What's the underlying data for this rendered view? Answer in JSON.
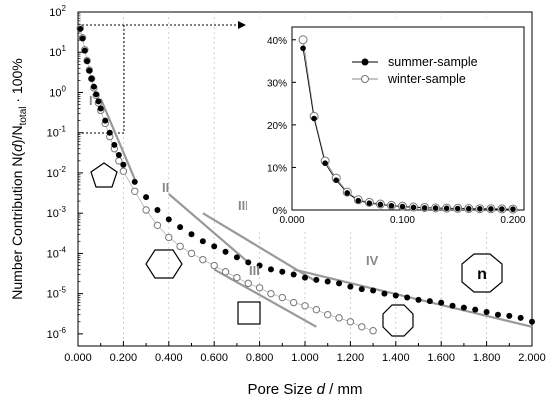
{
  "chart_data": {
    "type": "scatter",
    "xlabel": {
      "pre": "Pore Size ",
      "var": "d",
      "post": " / mm"
    },
    "ylabel": {
      "pre": "Number Contribution N(",
      "var": "d",
      "mid": ")/N",
      "sub": "total",
      "post": " · 100%"
    },
    "x_ticks": [
      "0.000",
      "0.200",
      "0.400",
      "0.600",
      "0.800",
      "1.000",
      "1.200",
      "1.400",
      "1.600",
      "1.800",
      "2.000"
    ],
    "xlim": [
      0,
      2.0
    ],
    "y_scale": "log",
    "ylim": [
      5e-07,
      100
    ],
    "y_tick_exponents": [
      -6,
      -5,
      -4,
      -3,
      -2,
      -1,
      0,
      1,
      2
    ],
    "y_tick_base": "10",
    "grid": "vertical dashed",
    "series": [
      {
        "name": "summer-sample",
        "marker": "filled-circle",
        "color": "#000000",
        "x": [
          0.01,
          0.02,
          0.03,
          0.04,
          0.05,
          0.06,
          0.07,
          0.08,
          0.09,
          0.1,
          0.12,
          0.14,
          0.16,
          0.18,
          0.2,
          0.25,
          0.3,
          0.35,
          0.4,
          0.45,
          0.5,
          0.55,
          0.6,
          0.65,
          0.7,
          0.75,
          0.8,
          0.85,
          0.9,
          0.95,
          1.0,
          1.05,
          1.1,
          1.15,
          1.2,
          1.25,
          1.3,
          1.35,
          1.4,
          1.45,
          1.5,
          1.55,
          1.6,
          1.65,
          1.7,
          1.75,
          1.8,
          1.85,
          1.9,
          1.95,
          2.0
        ],
        "y": [
          38,
          22,
          11,
          6,
          3.5,
          2.2,
          1.4,
          0.9,
          0.6,
          0.4,
          0.2,
          0.1,
          0.05,
          0.028,
          0.016,
          0.006,
          0.0025,
          0.0012,
          0.0007,
          0.00045,
          0.0003,
          0.0002,
          0.00015,
          0.00011,
          8e-05,
          6e-05,
          5e-05,
          4e-05,
          3.5e-05,
          3e-05,
          2.5e-05,
          2.2e-05,
          2e-05,
          1.8e-05,
          1.5e-05,
          1.3e-05,
          1.2e-05,
          1e-05,
          9e-06,
          8e-06,
          7e-06,
          6.5e-06,
          6e-06,
          5e-06,
          4.5e-06,
          4e-06,
          3.5e-06,
          3e-06,
          2.8e-06,
          2.5e-06,
          2e-06
        ]
      },
      {
        "name": "winter-sample",
        "marker": "open-circle",
        "color": "#777777",
        "x": [
          0.01,
          0.02,
          0.03,
          0.04,
          0.05,
          0.06,
          0.07,
          0.08,
          0.09,
          0.1,
          0.12,
          0.14,
          0.16,
          0.18,
          0.2,
          0.25,
          0.3,
          0.35,
          0.4,
          0.45,
          0.5,
          0.55,
          0.6,
          0.65,
          0.7,
          0.75,
          0.8,
          0.85,
          0.9,
          0.95,
          1.0,
          1.05,
          1.1,
          1.15,
          1.2,
          1.25,
          1.3
        ],
        "y": [
          40,
          23,
          11.5,
          6.2,
          3.6,
          2.2,
          1.3,
          0.85,
          0.55,
          0.36,
          0.17,
          0.08,
          0.04,
          0.02,
          0.011,
          0.0035,
          0.0012,
          0.0005,
          0.00025,
          0.00015,
          0.0001,
          7e-05,
          5e-05,
          3.5e-05,
          2.5e-05,
          1.8e-05,
          1.4e-05,
          1e-05,
          8e-06,
          6e-06,
          5e-06,
          4e-06,
          3e-06,
          2.5e-06,
          2e-06,
          1.5e-06,
          1.2e-06
        ]
      }
    ],
    "fit_lines": [
      {
        "label": "I",
        "x": [
          0.1,
          0.25
        ],
        "y": [
          0.7,
          0.007
        ]
      },
      {
        "label": "II",
        "x": [
          0.4,
          0.75
        ],
        "y": [
          0.003,
          6e-05
        ]
      },
      {
        "label": "III",
        "x": [
          0.55,
          1.05
        ],
        "y": [
          0.001,
          2e-05
        ]
      },
      {
        "label": "III",
        "x": [
          0.6,
          1.05
        ],
        "y": [
          4e-05,
          1.5e-06
        ]
      },
      {
        "label": "IV",
        "x": [
          0.95,
          2.0
        ],
        "y": [
          4e-05,
          1.5e-06
        ]
      }
    ],
    "roman_labels": [
      "I",
      "II",
      "III",
      "III",
      "IV"
    ],
    "shape_label": "n",
    "inset": {
      "type": "scatter",
      "x_ticks": [
        "0.000",
        "0.100",
        "0.200"
      ],
      "xlim": [
        0,
        0.21
      ],
      "y_ticks": [
        "0%",
        "10%",
        "20%",
        "30%",
        "40%"
      ],
      "ylim": [
        0,
        43
      ],
      "legend": [
        "summer-sample",
        "winter-sample"
      ],
      "legend_position": "top-right",
      "summer_x": [
        0.01,
        0.02,
        0.03,
        0.04,
        0.05,
        0.06,
        0.07,
        0.08,
        0.09,
        0.1,
        0.11,
        0.12,
        0.13,
        0.14,
        0.15,
        0.16,
        0.17,
        0.18,
        0.19,
        0.2
      ],
      "summer_y": [
        38,
        21.5,
        11,
        7,
        4,
        2.2,
        1.6,
        1.3,
        1,
        0.8,
        0.6,
        0.5,
        0.45,
        0.4,
        0.35,
        0.3,
        0.28,
        0.25,
        0.22,
        0.2
      ],
      "winter_x": [
        0.01,
        0.02,
        0.03,
        0.04,
        0.05,
        0.06,
        0.07,
        0.08,
        0.09,
        0.1,
        0.11,
        0.12,
        0.13,
        0.14,
        0.15,
        0.16,
        0.17,
        0.18,
        0.19,
        0.2
      ],
      "winter_y": [
        40,
        22,
        11.5,
        7.5,
        4.2,
        2.4,
        1.8,
        1.4,
        1.1,
        0.9,
        0.7,
        0.6,
        0.5,
        0.45,
        0.4,
        0.35,
        0.3,
        0.28,
        0.25,
        0.22
      ]
    }
  }
}
